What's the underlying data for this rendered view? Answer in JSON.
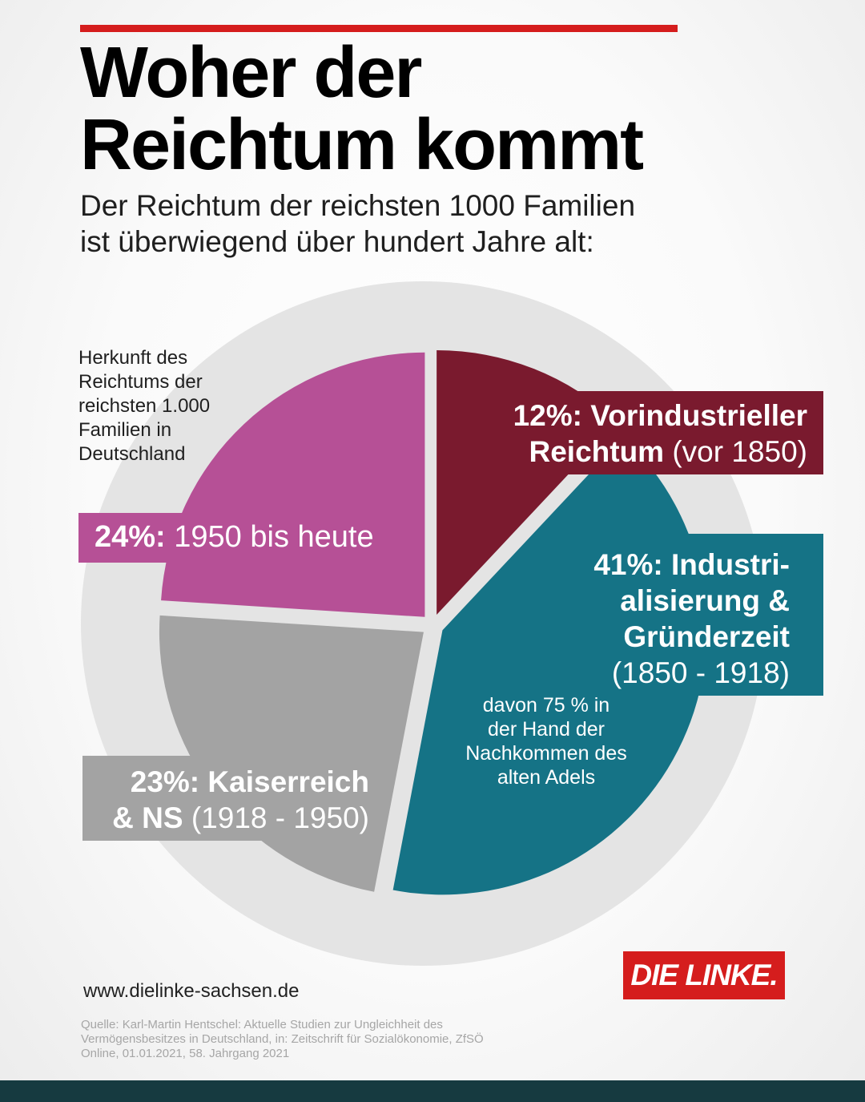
{
  "header": {
    "title_lines": [
      "Woher der",
      "Reichtum kommt"
    ],
    "subtitle_lines": [
      "Der Reichtum der reichsten 1000 Familien",
      "ist überwiegend über hundert Jahre alt:"
    ]
  },
  "chart_data": {
    "type": "pie",
    "title": "Herkunft des Reichtums der reichsten 1.000 Familien in Deutschland",
    "title_lines": [
      "Herkunft des",
      "Reichtums der",
      "reichsten 1.000",
      "Familien in",
      "Deutschland"
    ],
    "slices": [
      {
        "id": "vorindustriell",
        "value": 12,
        "percent_label": "12%:",
        "bold_text": "Vorindustrieller",
        "bold_text_2": "Reichtum",
        "period_text": "(vor 1850)",
        "color": "#7a1a2e"
      },
      {
        "id": "industrialisierung",
        "value": 41,
        "percent_label": "41%:",
        "bold_text": "Industri-",
        "bold_text_2": "alisierung &",
        "bold_text_3": "Gründerzeit",
        "period_text": "(1850 - 1918)",
        "note_lines": [
          "davon 75 % in",
          "der Hand der",
          "Nachkommen des",
          "alten Adels"
        ],
        "color": "#157386"
      },
      {
        "id": "kaiserreich",
        "value": 23,
        "percent_label": "23%:",
        "bold_text": "Kaiserreich",
        "bold_text_2": "& NS",
        "period_text": "(1918 - 1950)",
        "color": "#a3a3a3"
      },
      {
        "id": "heute",
        "value": 24,
        "percent_label": "24%:",
        "period_text": "1950 bis heute",
        "color": "#b65096"
      }
    ]
  },
  "footer": {
    "url": "www.dielinke-sachsen.de",
    "logo_text": "DIE LINKE.",
    "source_lines": [
      "Quelle: Karl-Martin Hentschel: Aktuelle Studien zur Ungleichheit des",
      "Vermögensbesitzes in Deutschland, in: Zeitschrift für Sozialökonomie, ZfSÖ",
      "Online, 01.01.2021, 58. Jahrgang 2021"
    ]
  },
  "colors": {
    "accent_red": "#d51d1d",
    "footer_bar": "#163a40",
    "ring": "#e4e4e4"
  }
}
